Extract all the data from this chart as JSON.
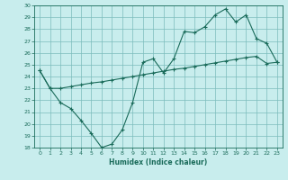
{
  "title": "",
  "xlabel": "Humidex (Indice chaleur)",
  "ylabel": "",
  "xlim": [
    -0.5,
    23.5
  ],
  "ylim": [
    18,
    30
  ],
  "yticks": [
    18,
    19,
    20,
    21,
    22,
    23,
    24,
    25,
    26,
    27,
    28,
    29,
    30
  ],
  "xticks": [
    0,
    1,
    2,
    3,
    4,
    5,
    6,
    7,
    8,
    9,
    10,
    11,
    12,
    13,
    14,
    15,
    16,
    17,
    18,
    19,
    20,
    21,
    22,
    23
  ],
  "bg_color": "#c8eded",
  "line_color": "#1a6b5a",
  "grid_color": "#7bbcbc",
  "curve1_x": [
    0,
    1,
    2,
    3,
    4,
    5,
    6,
    7,
    8,
    9,
    10,
    11,
    12,
    13,
    14,
    15,
    16,
    17,
    18,
    19,
    20,
    21,
    22,
    23
  ],
  "curve1_y": [
    24.5,
    23.0,
    21.8,
    21.3,
    20.3,
    19.2,
    18.0,
    18.3,
    19.5,
    21.8,
    25.2,
    25.5,
    24.3,
    25.5,
    27.8,
    27.7,
    28.2,
    29.2,
    29.7,
    28.6,
    29.2,
    27.2,
    26.8,
    25.2
  ],
  "curve2_x": [
    0,
    1,
    2,
    3,
    4,
    5,
    6,
    7,
    8,
    9,
    10,
    11,
    12,
    13,
    14,
    15,
    16,
    17,
    18,
    19,
    20,
    21,
    22,
    23
  ],
  "curve2_y": [
    24.5,
    23.0,
    23.0,
    23.15,
    23.3,
    23.45,
    23.55,
    23.7,
    23.85,
    24.0,
    24.15,
    24.3,
    24.45,
    24.6,
    24.7,
    24.85,
    25.0,
    25.15,
    25.3,
    25.45,
    25.6,
    25.7,
    25.1,
    25.2
  ]
}
